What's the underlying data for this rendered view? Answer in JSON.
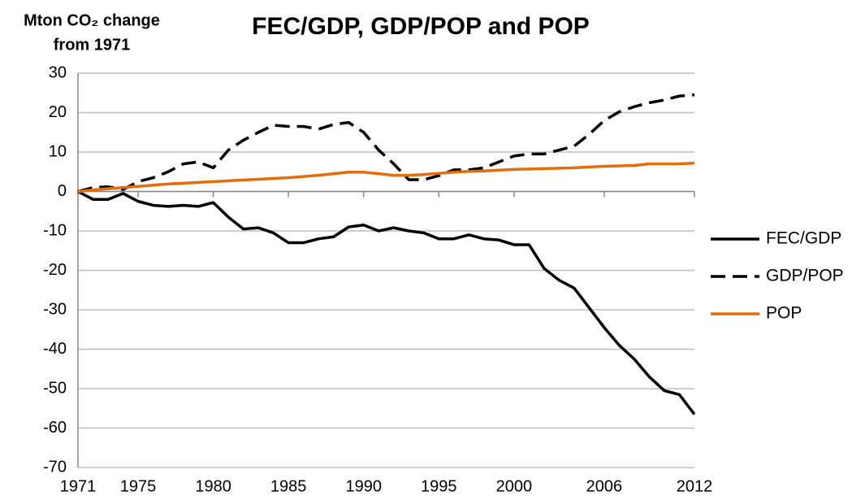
{
  "chart_data": {
    "type": "line",
    "title": "FEC/GDP, GDP/POP and POP",
    "y_label": [
      "Mton CO₂ change",
      "from 1971"
    ],
    "x": [
      1971,
      1972,
      1973,
      1974,
      1975,
      1976,
      1977,
      1978,
      1979,
      1980,
      1981,
      1982,
      1983,
      1984,
      1985,
      1986,
      1987,
      1988,
      1989,
      1990,
      1991,
      1992,
      1993,
      1994,
      1995,
      1996,
      1997,
      1998,
      1999,
      2000,
      2001,
      2002,
      2003,
      2004,
      2005,
      2006,
      2007,
      2008,
      2009,
      2010,
      2011,
      2012
    ],
    "xlim": [
      1971,
      2012
    ],
    "xticks": [
      1971,
      1975,
      1980,
      1985,
      1990,
      1995,
      2000,
      2006,
      2012
    ],
    "ylim": [
      -70,
      30
    ],
    "yticks": [
      -70,
      -60,
      -50,
      -40,
      -30,
      -20,
      -10,
      0,
      10,
      20,
      30
    ],
    "grid": true,
    "legend": "right",
    "series": [
      {
        "name": "FEC/GDP",
        "color": "#000000",
        "style": "solid",
        "values": [
          0,
          -2,
          -2,
          -0.5,
          -2.5,
          -3.5,
          -3.8,
          -3.5,
          -3.8,
          -2.8,
          -6.5,
          -9.5,
          -9.2,
          -10.5,
          -13,
          -13,
          -12,
          -11.5,
          -9,
          -8.5,
          -10,
          -9.2,
          -10,
          -10.5,
          -12,
          -12,
          -11,
          -12,
          -12.3,
          -13.5,
          -13.5,
          -19.5,
          -22.5,
          -24.5,
          -29.5,
          -34.5,
          -39,
          -42.5,
          -47,
          -50.5,
          -51.5,
          -56.5
        ]
      },
      {
        "name": "GDP/POP",
        "color": "#000000",
        "style": "dashed",
        "values": [
          0,
          1,
          1.2,
          0.5,
          2.5,
          3.5,
          5,
          7,
          7.5,
          6,
          10.5,
          13,
          15,
          16.8,
          16.5,
          16.5,
          15.8,
          17,
          17.5,
          15,
          10.5,
          7,
          3,
          3,
          4,
          5.5,
          5.5,
          6,
          7.5,
          9,
          9.5,
          9.5,
          10.5,
          11.5,
          14.5,
          18,
          20.2,
          21.5,
          22.5,
          23.2,
          24.2,
          24.5
        ]
      },
      {
        "name": "POP",
        "color": "#e46c0a",
        "style": "solid",
        "values": [
          0,
          0.4,
          0.7,
          1,
          1.3,
          1.6,
          1.9,
          2.1,
          2.3,
          2.5,
          2.7,
          2.9,
          3.1,
          3.3,
          3.5,
          3.8,
          4.1,
          4.5,
          4.9,
          4.9,
          4.5,
          4.1,
          4.1,
          4.3,
          4.6,
          4.9,
          5.1,
          5.2,
          5.4,
          5.6,
          5.7,
          5.8,
          5.9,
          6.0,
          6.2,
          6.4,
          6.5,
          6.6,
          7,
          7,
          7,
          7.2
        ]
      }
    ]
  }
}
